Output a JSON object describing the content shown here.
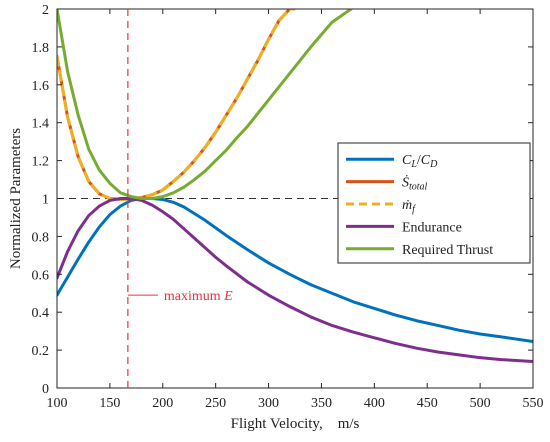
{
  "chart_data": {
    "type": "line",
    "xlabel": "Flight Velocity,    m/s",
    "ylabel": "Normalized Parameters",
    "xlim": [
      100,
      550
    ],
    "ylim": [
      0,
      2
    ],
    "xticks": [
      100,
      150,
      200,
      250,
      300,
      350,
      400,
      450,
      500,
      550
    ],
    "yticks": [
      0,
      0.2,
      0.4,
      0.6,
      0.8,
      1,
      1.2,
      1.4,
      1.6,
      1.8,
      2
    ],
    "xtick_labels": [
      "100",
      "150",
      "200",
      "250",
      "300",
      "350",
      "400",
      "450",
      "500",
      "550"
    ],
    "ytick_labels": [
      "0",
      "0.2",
      "0.4",
      "0.6",
      "0.8",
      "1",
      "1.2",
      "1.4",
      "1.6",
      "1.8",
      "2"
    ],
    "grid": false,
    "legend_position": "right",
    "reference_line": {
      "y": 1,
      "style": "dashed",
      "color": "#333333"
    },
    "annotation": {
      "x": 167,
      "label_prefix": "maximum ",
      "label_var": "E",
      "color": "#e8343e",
      "label_y": 0.49
    },
    "series": [
      {
        "name": "C_L/C_D",
        "legend_text": "CL/CD",
        "color": "#0072bd",
        "dash": "solid",
        "x": [
          100,
          110,
          120,
          130,
          140,
          150,
          160,
          170,
          180,
          190,
          200,
          210,
          220,
          230,
          240,
          250,
          260,
          280,
          300,
          320,
          340,
          360,
          380,
          400,
          420,
          440,
          460,
          480,
          500,
          520,
          550
        ],
        "y": [
          0.49,
          0.585,
          0.68,
          0.77,
          0.85,
          0.915,
          0.96,
          0.99,
          1.0,
          1.0,
          0.995,
          0.98,
          0.955,
          0.92,
          0.885,
          0.845,
          0.805,
          0.73,
          0.66,
          0.6,
          0.545,
          0.5,
          0.455,
          0.42,
          0.385,
          0.355,
          0.33,
          0.305,
          0.285,
          0.27,
          0.245
        ]
      },
      {
        "name": "S_total",
        "legend_text": "Stotal",
        "color": "#d95319",
        "dash": "solid",
        "x": [
          100,
          110,
          120,
          130,
          140,
          150,
          160,
          170,
          180,
          190,
          200,
          210,
          220,
          230,
          240,
          250,
          260,
          270,
          280,
          290,
          300,
          310,
          320,
          324
        ],
        "y": [
          1.75,
          1.43,
          1.22,
          1.09,
          1.025,
          1.0,
          0.995,
          0.998,
          1.005,
          1.02,
          1.045,
          1.09,
          1.14,
          1.2,
          1.27,
          1.35,
          1.44,
          1.53,
          1.63,
          1.73,
          1.84,
          1.94,
          2.0,
          2.0
        ]
      },
      {
        "name": "m_f",
        "legend_text": "mf",
        "color": "#edb120",
        "dash": "dashed",
        "x": [
          100,
          110,
          120,
          130,
          140,
          150,
          160,
          170,
          180,
          190,
          200,
          210,
          220,
          230,
          240,
          250,
          260,
          270,
          280,
          290,
          300,
          310,
          320,
          324
        ],
        "y": [
          1.75,
          1.43,
          1.22,
          1.09,
          1.025,
          1.0,
          0.995,
          0.998,
          1.005,
          1.02,
          1.045,
          1.09,
          1.14,
          1.2,
          1.27,
          1.35,
          1.44,
          1.53,
          1.63,
          1.73,
          1.84,
          1.94,
          2.0,
          2.0
        ]
      },
      {
        "name": "Endurance",
        "legend_text": "Endurance",
        "color": "#7e2f8e",
        "dash": "solid",
        "x": [
          100,
          110,
          120,
          130,
          140,
          150,
          160,
          167,
          175,
          180,
          190,
          200,
          210,
          220,
          230,
          240,
          250,
          260,
          280,
          300,
          320,
          340,
          360,
          380,
          400,
          420,
          440,
          460,
          480,
          500,
          520,
          550
        ],
        "y": [
          0.58,
          0.72,
          0.83,
          0.91,
          0.96,
          0.99,
          1.0,
          1.0,
          0.995,
          0.99,
          0.965,
          0.93,
          0.89,
          0.84,
          0.79,
          0.74,
          0.69,
          0.645,
          0.56,
          0.49,
          0.43,
          0.375,
          0.33,
          0.295,
          0.265,
          0.235,
          0.21,
          0.19,
          0.175,
          0.16,
          0.15,
          0.14
        ]
      },
      {
        "name": "Required Thrust",
        "legend_text": "Required Thrust",
        "color": "#77ac30",
        "dash": "solid",
        "x": [
          100,
          110,
          120,
          130,
          140,
          150,
          160,
          170,
          180,
          190,
          200,
          210,
          220,
          230,
          240,
          250,
          260,
          270,
          280,
          300,
          320,
          340,
          360,
          378
        ],
        "y": [
          2.0,
          1.67,
          1.44,
          1.26,
          1.15,
          1.08,
          1.03,
          1.01,
          1.0,
          1.0,
          1.01,
          1.03,
          1.06,
          1.1,
          1.145,
          1.2,
          1.255,
          1.32,
          1.38,
          1.52,
          1.66,
          1.8,
          1.93,
          2.0
        ]
      }
    ]
  }
}
